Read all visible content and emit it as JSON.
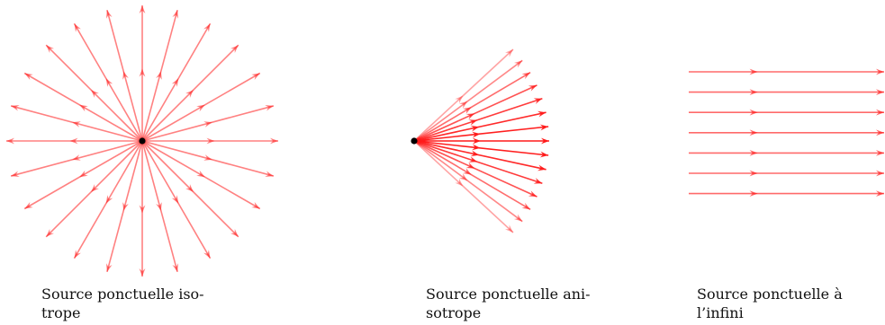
{
  "colors": {
    "ray": "#ff1a1a",
    "source_point": "#000000",
    "background": "#ffffff"
  },
  "panels": [
    {
      "id": "isotrope",
      "kind": "isotropic-point-source",
      "ray_count": 24,
      "ray_opacity": 0.55,
      "caption_lines": [
        "Source ponctuelle iso-",
        "trope"
      ]
    },
    {
      "id": "anisotrope",
      "kind": "anisotropic-point-source",
      "ray_count": 15,
      "caption_lines": [
        "Source ponctuelle ani-",
        "sotrope"
      ]
    },
    {
      "id": "infini",
      "kind": "source-at-infinity",
      "ray_count": 7,
      "ray_opacity": 0.65,
      "caption_lines": [
        "Source ponctuelle à",
        "l’infini"
      ]
    }
  ]
}
